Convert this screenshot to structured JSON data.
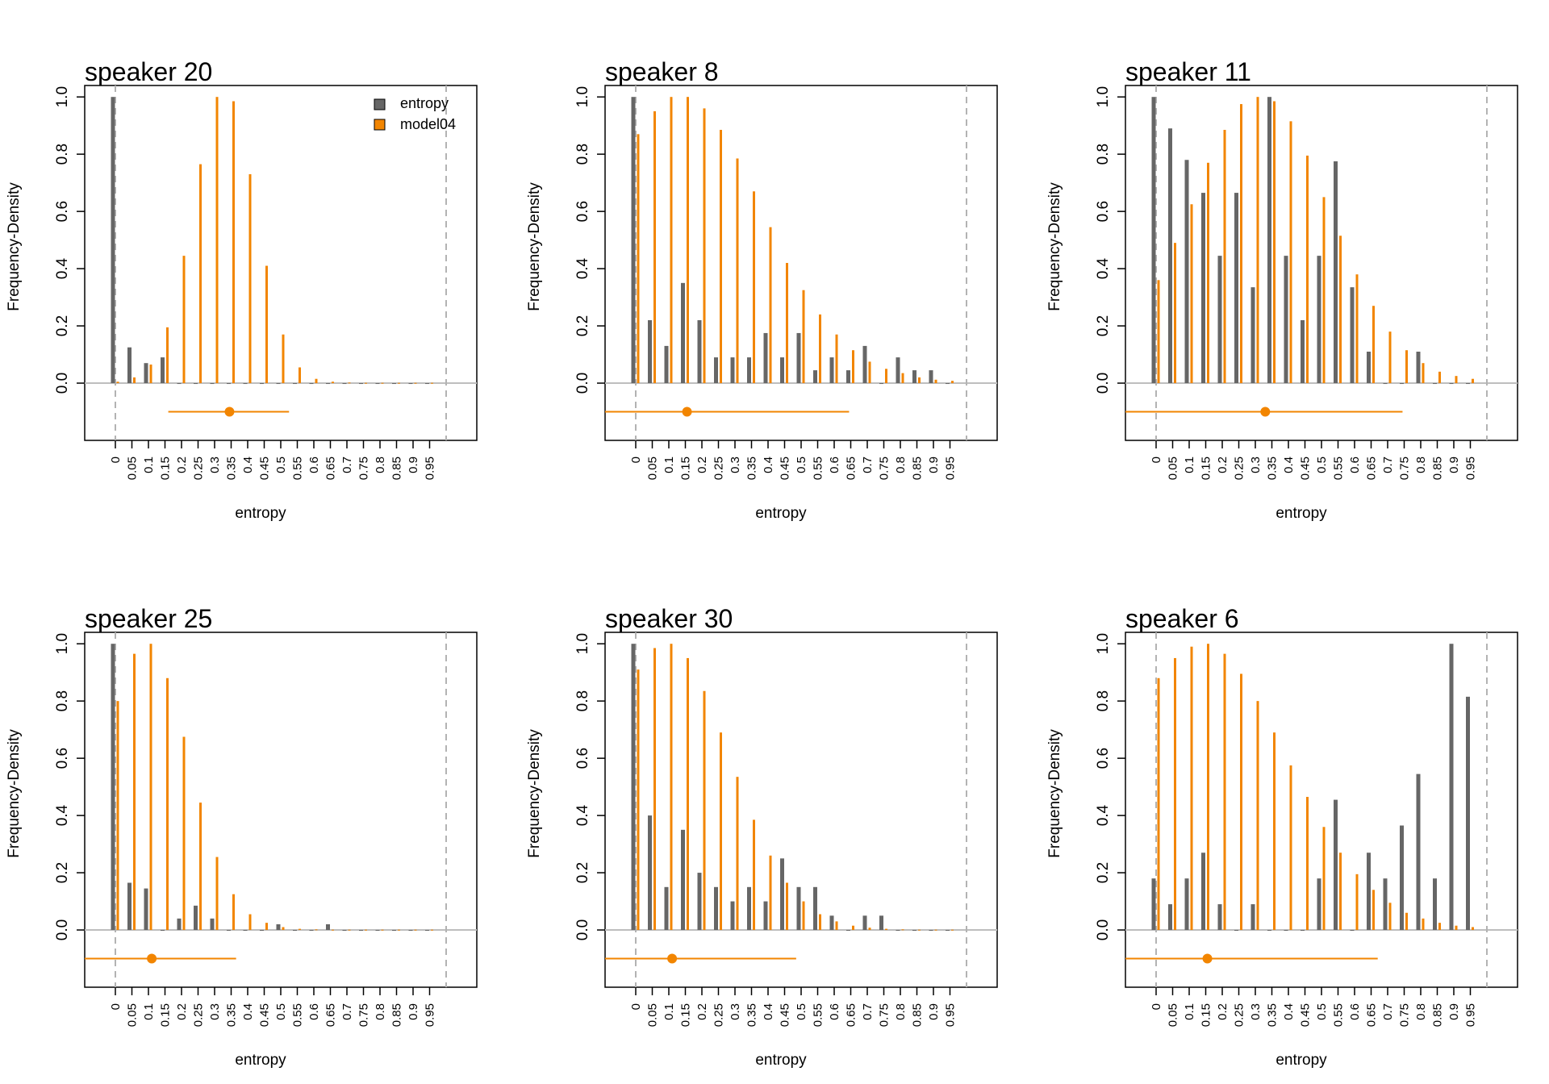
{
  "colors": {
    "entropy": "#666666",
    "model04": "#F28500",
    "zero_line": "#bebebe",
    "ref_line": "#b3b3b3",
    "frame": "#000000"
  },
  "legend": {
    "items": [
      {
        "label": "entropy",
        "color": "#666666"
      },
      {
        "label": "model04",
        "color": "#F28500"
      }
    ]
  },
  "chart_data": [
    {
      "type": "bar",
      "title": "speaker 20",
      "xlabel": "entropy",
      "ylabel": "Frequency-Density",
      "categories": [
        "0",
        "0.05",
        "0.1",
        "0.15",
        "0.2",
        "0.25",
        "0.3",
        "0.35",
        "0.4",
        "0.45",
        "0.5",
        "0.55",
        "0.6",
        "0.65",
        "0.7",
        "0.75",
        "0.8",
        "0.85",
        "0.9",
        "0.95"
      ],
      "yticks": [
        "0.0",
        "0.2",
        "0.4",
        "0.6",
        "0.8",
        "1.0"
      ],
      "ylim": [
        -0.2,
        1.04
      ],
      "legend_position": "top-right",
      "series": [
        {
          "name": "entropy",
          "values": [
            1.0,
            0.125,
            0.07,
            0.09,
            0,
            0,
            0,
            0,
            0,
            0,
            0,
            0,
            0,
            0,
            0,
            0,
            0,
            0,
            0,
            0
          ]
        },
        {
          "name": "model04",
          "values": [
            0.005,
            0.02,
            0.065,
            0.195,
            0.445,
            0.765,
            1.0,
            0.985,
            0.73,
            0.41,
            0.17,
            0.055,
            0.015,
            0.005,
            0.002,
            0.001,
            0.001,
            0.001,
            0.001,
            0.001
          ]
        }
      ],
      "interval": {
        "center": 0.345,
        "low": 0.16,
        "high": 0.525
      },
      "ref_lines": [
        0,
        1
      ]
    },
    {
      "type": "bar",
      "title": "speaker 8",
      "xlabel": "entropy",
      "ylabel": "Frequency-Density",
      "categories": [
        "0",
        "0.05",
        "0.1",
        "0.15",
        "0.2",
        "0.25",
        "0.3",
        "0.35",
        "0.4",
        "0.45",
        "0.5",
        "0.55",
        "0.6",
        "0.65",
        "0.7",
        "0.75",
        "0.8",
        "0.85",
        "0.9",
        "0.95"
      ],
      "yticks": [
        "0.0",
        "0.2",
        "0.4",
        "0.6",
        "0.8",
        "1.0"
      ],
      "ylim": [
        -0.2,
        1.04
      ],
      "series": [
        {
          "name": "entropy",
          "values": [
            1.0,
            0.22,
            0.13,
            0.35,
            0.22,
            0.09,
            0.09,
            0.09,
            0.175,
            0.09,
            0.175,
            0.045,
            0.09,
            0.045,
            0.13,
            0,
            0.09,
            0.045,
            0.045,
            0
          ]
        },
        {
          "name": "model04",
          "values": [
            0.87,
            0.95,
            1.0,
            1.0,
            0.96,
            0.885,
            0.785,
            0.67,
            0.545,
            0.42,
            0.325,
            0.24,
            0.17,
            0.115,
            0.075,
            0.05,
            0.035,
            0.02,
            0.012,
            0.008
          ]
        }
      ],
      "interval": {
        "center": 0.155,
        "low": -0.1,
        "high": 0.645
      },
      "ref_lines": [
        0,
        1
      ]
    },
    {
      "type": "bar",
      "title": "speaker 11",
      "xlabel": "entropy",
      "ylabel": "Frequency-Density",
      "categories": [
        "0",
        "0.05",
        "0.1",
        "0.15",
        "0.2",
        "0.25",
        "0.3",
        "0.35",
        "0.4",
        "0.45",
        "0.5",
        "0.55",
        "0.6",
        "0.65",
        "0.7",
        "0.75",
        "0.8",
        "0.85",
        "0.9",
        "0.95"
      ],
      "yticks": [
        "0.0",
        "0.2",
        "0.4",
        "0.6",
        "0.8",
        "1.0"
      ],
      "ylim": [
        -0.2,
        1.04
      ],
      "series": [
        {
          "name": "entropy",
          "values": [
            1.0,
            0.89,
            0.78,
            0.665,
            0.445,
            0.665,
            0.335,
            1.0,
            0.445,
            0.22,
            0.445,
            0.775,
            0.335,
            0.11,
            0,
            0,
            0.11,
            0,
            0,
            0
          ]
        },
        {
          "name": "model04",
          "values": [
            0.36,
            0.49,
            0.625,
            0.77,
            0.885,
            0.975,
            1.0,
            0.985,
            0.915,
            0.795,
            0.65,
            0.515,
            0.38,
            0.27,
            0.18,
            0.115,
            0.07,
            0.04,
            0.025,
            0.015
          ]
        }
      ],
      "interval": {
        "center": 0.33,
        "low": -0.1,
        "high": 0.745
      },
      "ref_lines": [
        0,
        1
      ]
    },
    {
      "type": "bar",
      "title": "speaker 25",
      "xlabel": "entropy",
      "ylabel": "Frequency-Density",
      "categories": [
        "0",
        "0.05",
        "0.1",
        "0.15",
        "0.2",
        "0.25",
        "0.3",
        "0.35",
        "0.4",
        "0.45",
        "0.5",
        "0.55",
        "0.6",
        "0.65",
        "0.7",
        "0.75",
        "0.8",
        "0.85",
        "0.9",
        "0.95"
      ],
      "yticks": [
        "0.0",
        "0.2",
        "0.4",
        "0.6",
        "0.8",
        "1.0"
      ],
      "ylim": [
        -0.2,
        1.04
      ],
      "series": [
        {
          "name": "entropy",
          "values": [
            1.0,
            0.165,
            0.145,
            0,
            0.04,
            0.085,
            0.04,
            0,
            0,
            0,
            0.02,
            0,
            0,
            0.02,
            0,
            0,
            0,
            0,
            0,
            0
          ]
        },
        {
          "name": "model04",
          "values": [
            0.8,
            0.965,
            1.0,
            0.88,
            0.675,
            0.445,
            0.255,
            0.125,
            0.055,
            0.025,
            0.01,
            0.004,
            0.002,
            0.001,
            0.001,
            0.001,
            0.001,
            0.001,
            0.001,
            0.001
          ]
        }
      ],
      "interval": {
        "center": 0.11,
        "low": -0.1,
        "high": 0.365
      },
      "ref_lines": [
        0,
        1
      ]
    },
    {
      "type": "bar",
      "title": "speaker 30",
      "xlabel": "entropy",
      "ylabel": "Frequency-Density",
      "categories": [
        "0",
        "0.05",
        "0.1",
        "0.15",
        "0.2",
        "0.25",
        "0.3",
        "0.35",
        "0.4",
        "0.45",
        "0.5",
        "0.55",
        "0.6",
        "0.65",
        "0.7",
        "0.75",
        "0.8",
        "0.85",
        "0.9",
        "0.95"
      ],
      "yticks": [
        "0.0",
        "0.2",
        "0.4",
        "0.6",
        "0.8",
        "1.0"
      ],
      "ylim": [
        -0.2,
        1.04
      ],
      "series": [
        {
          "name": "entropy",
          "values": [
            1.0,
            0.4,
            0.15,
            0.35,
            0.2,
            0.15,
            0.1,
            0.15,
            0.1,
            0.25,
            0.15,
            0.15,
            0.05,
            0,
            0.05,
            0.05,
            0,
            0,
            0,
            0
          ]
        },
        {
          "name": "model04",
          "values": [
            0.91,
            0.985,
            1.0,
            0.95,
            0.835,
            0.69,
            0.535,
            0.385,
            0.26,
            0.165,
            0.1,
            0.055,
            0.03,
            0.015,
            0.008,
            0.004,
            0.002,
            0.001,
            0.001,
            0.001
          ]
        }
      ],
      "interval": {
        "center": 0.11,
        "low": -0.1,
        "high": 0.485
      },
      "ref_lines": [
        0,
        1
      ]
    },
    {
      "type": "bar",
      "title": "speaker 6",
      "xlabel": "entropy",
      "ylabel": "Frequency-Density",
      "categories": [
        "0",
        "0.05",
        "0.1",
        "0.15",
        "0.2",
        "0.25",
        "0.3",
        "0.35",
        "0.4",
        "0.45",
        "0.5",
        "0.55",
        "0.6",
        "0.65",
        "0.7",
        "0.75",
        "0.8",
        "0.85",
        "0.9",
        "0.95"
      ],
      "yticks": [
        "0.0",
        "0.2",
        "0.4",
        "0.6",
        "0.8",
        "1.0"
      ],
      "ylim": [
        -0.2,
        1.04
      ],
      "series": [
        {
          "name": "entropy",
          "values": [
            0.18,
            0.09,
            0.18,
            0.27,
            0.09,
            0,
            0.09,
            0,
            0,
            0,
            0.18,
            0.455,
            0,
            0.27,
            0.18,
            0.365,
            0.545,
            0.18,
            1.0,
            0.815
          ]
        },
        {
          "name": "model04",
          "values": [
            0.88,
            0.95,
            0.99,
            1.0,
            0.965,
            0.895,
            0.8,
            0.69,
            0.575,
            0.465,
            0.36,
            0.27,
            0.195,
            0.14,
            0.095,
            0.06,
            0.04,
            0.025,
            0.015,
            0.01
          ]
        }
      ],
      "interval": {
        "center": 0.155,
        "low": -0.1,
        "high": 0.67
      },
      "ref_lines": [
        0,
        1
      ]
    }
  ]
}
